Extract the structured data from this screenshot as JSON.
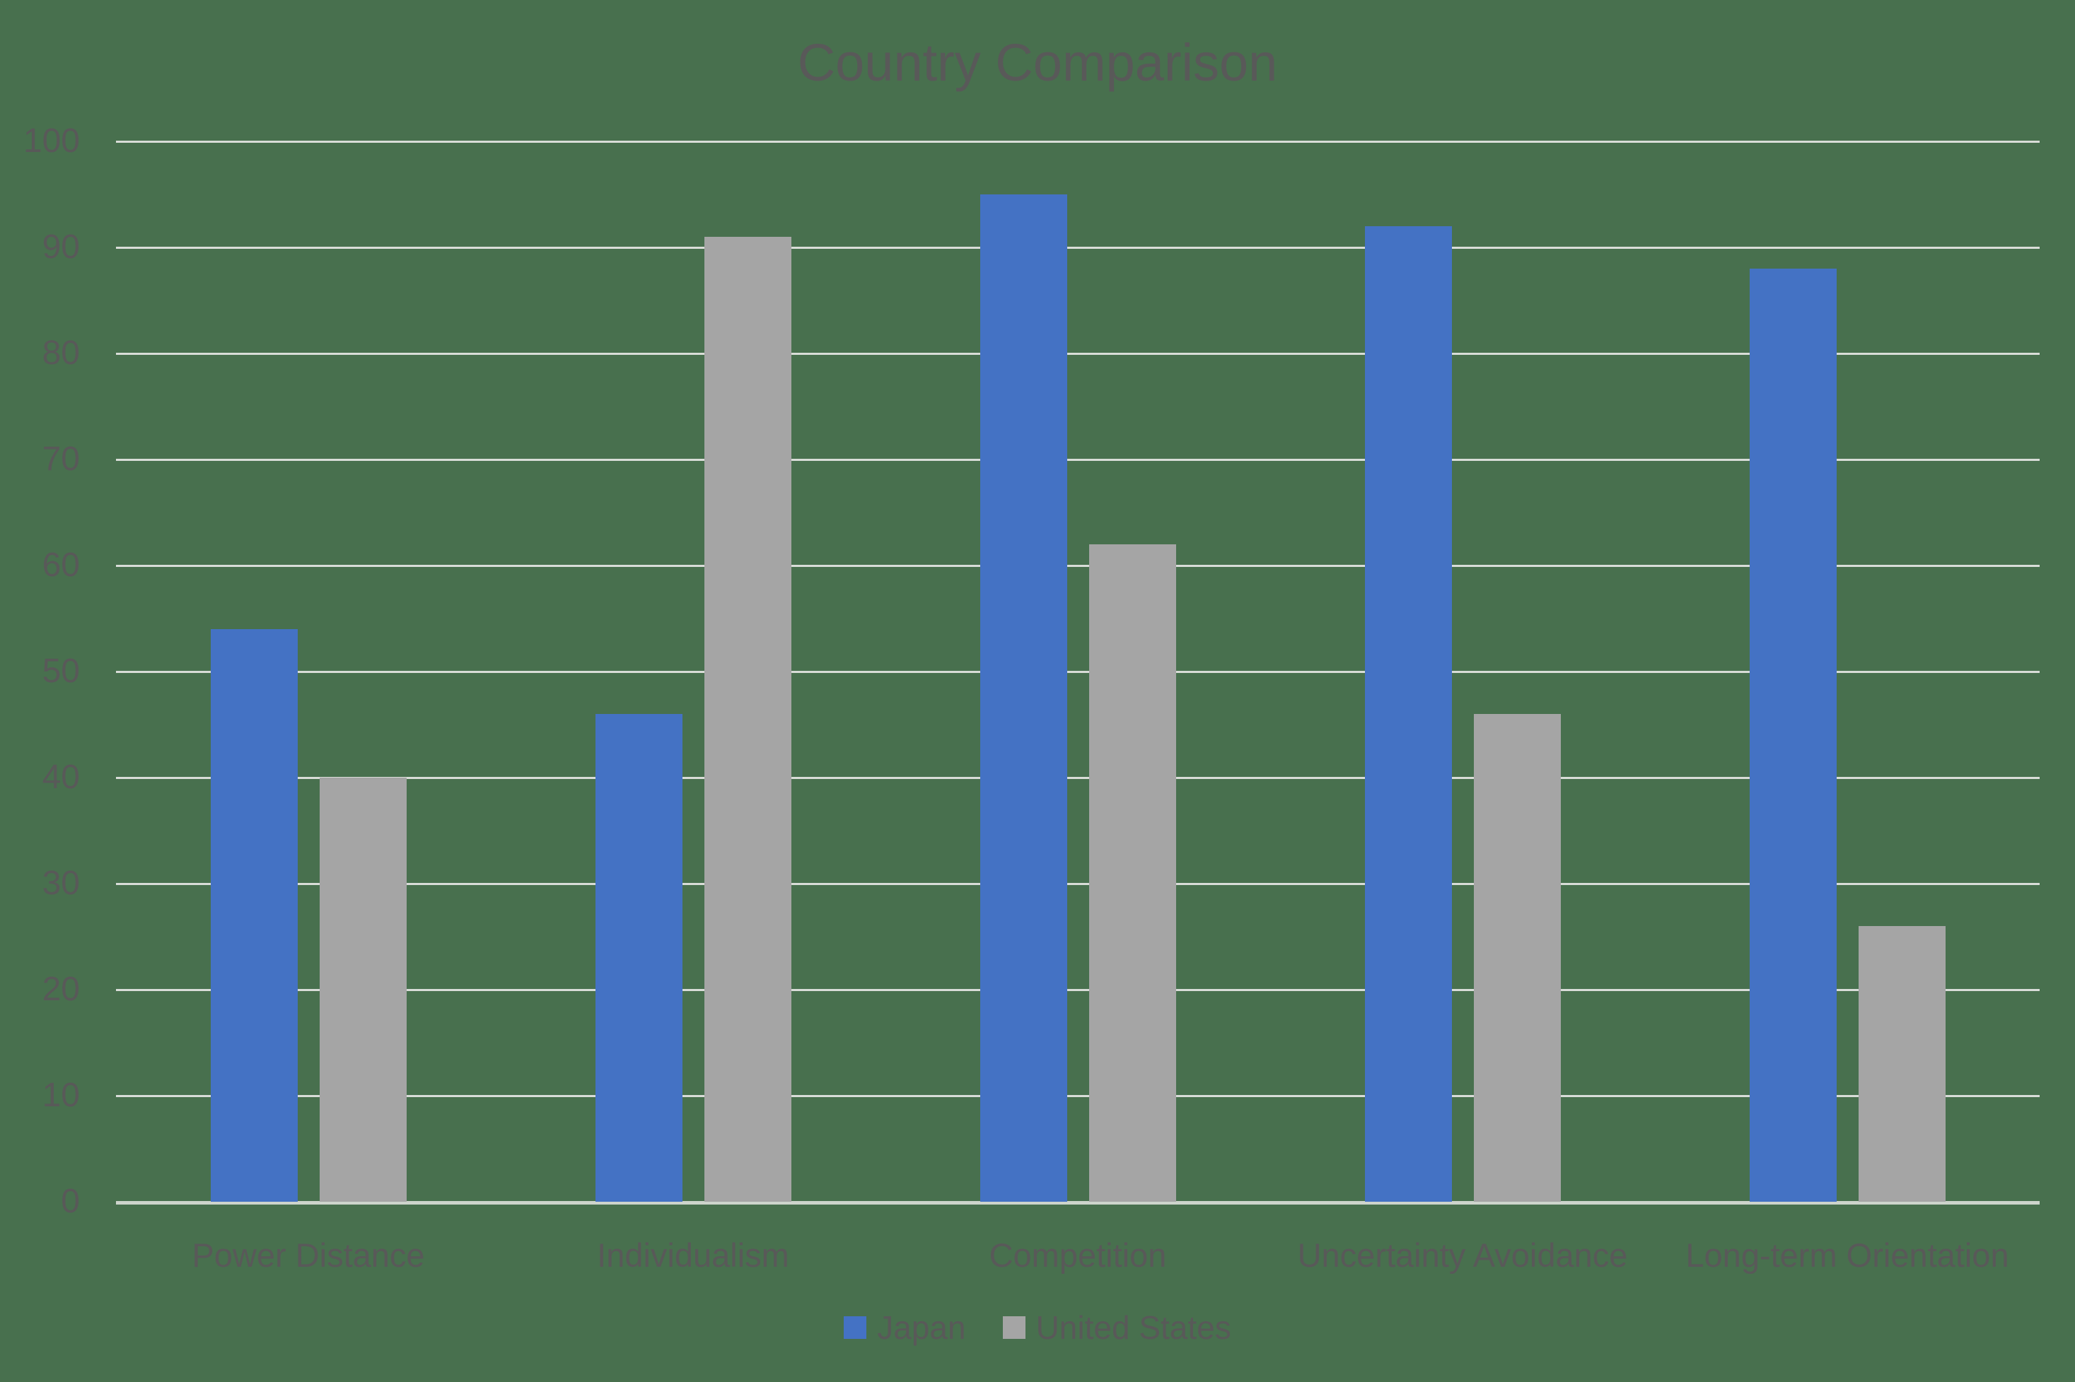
{
  "chart_data": {
    "type": "bar",
    "title": "Country Comparison",
    "categories": [
      "Power Distance",
      "Individualism",
      "Competition",
      "Uncertainty Avoidance",
      "Long-term Orientation"
    ],
    "series": [
      {
        "name": "Japan",
        "color": "#4472C4",
        "values": [
          54,
          46,
          95,
          92,
          88
        ]
      },
      {
        "name": "United States",
        "color": "#A5A5A5",
        "values": [
          40,
          91,
          62,
          46,
          26
        ]
      }
    ],
    "xlabel": "",
    "ylabel": "",
    "ylim": [
      0,
      100
    ],
    "yticks": [
      0,
      10,
      20,
      30,
      40,
      50,
      60,
      70,
      80,
      90,
      100
    ],
    "grid": true,
    "legend_position": "bottom"
  },
  "colors": {
    "background": "#48704E",
    "title_text": "#595959",
    "axis_text": "#595959",
    "gridline": "#D9DDD8",
    "axis_line": "#CDD4CC",
    "series_japan": "#4472C4",
    "series_united_states": "#A5A5A5"
  }
}
